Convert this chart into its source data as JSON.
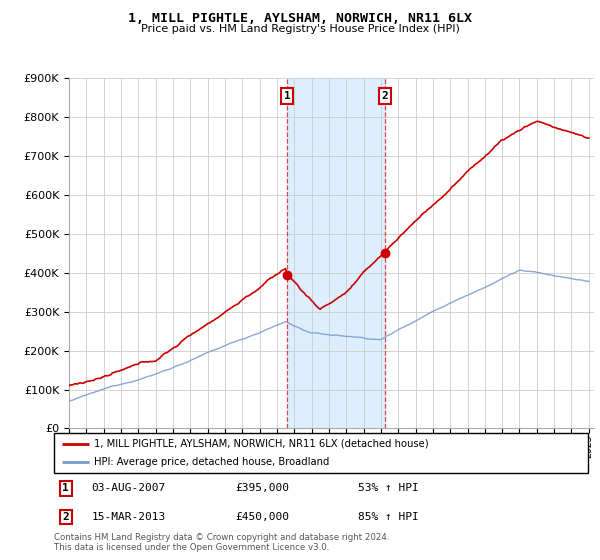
{
  "title": "1, MILL PIGHTLE, AYLSHAM, NORWICH, NR11 6LX",
  "subtitle": "Price paid vs. HM Land Registry's House Price Index (HPI)",
  "legend_line1": "1, MILL PIGHTLE, AYLSHAM, NORWICH, NR11 6LX (detached house)",
  "legend_line2": "HPI: Average price, detached house, Broadland",
  "footnote1": "Contains HM Land Registry data © Crown copyright and database right 2024.",
  "footnote2": "This data is licensed under the Open Government Licence v3.0.",
  "annotation1_label": "1",
  "annotation1_date": "03-AUG-2007",
  "annotation1_price": "£395,000",
  "annotation1_hpi": "53% ↑ HPI",
  "annotation2_label": "2",
  "annotation2_date": "15-MAR-2013",
  "annotation2_price": "£450,000",
  "annotation2_hpi": "85% ↑ HPI",
  "red_color": "#cc0000",
  "blue_color": "#7799cc",
  "vline_color": "#dd4444",
  "shading_color": "#ddeeff",
  "grid_color": "#cccccc",
  "background_color": "#ffffff",
  "ylim": [
    0,
    900000
  ],
  "yticks": [
    0,
    100000,
    200000,
    300000,
    400000,
    500000,
    600000,
    700000,
    800000,
    900000
  ],
  "start_year": 1995,
  "end_year": 2025,
  "purchase1_year": 2007.59,
  "purchase1_price": 395000,
  "purchase2_year": 2013.21,
  "purchase2_price": 450000
}
